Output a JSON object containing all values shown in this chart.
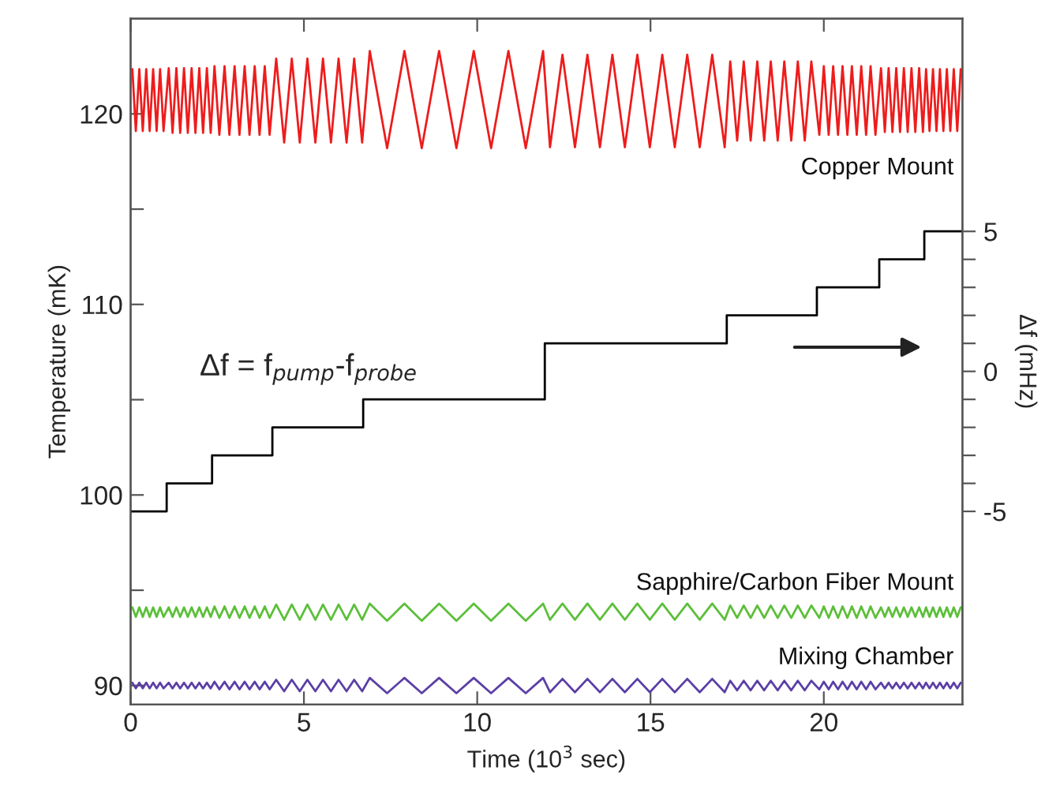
{
  "chart_data": {
    "type": "line",
    "xlabel": "Time (10$^{3}$ sec)",
    "ylabel": "Temperature (mK)",
    "y2label": "Δf (mHz)",
    "annotations": [
      "Δf = f$_{pump}$-f$_{probe}$"
    ],
    "xlim": [
      0,
      24
    ],
    "xticks": [
      0,
      5,
      10,
      15,
      20
    ],
    "ylim": [
      89,
      125
    ],
    "yticks": [
      90,
      {
        "value": 95,
        "label": null
      },
      100,
      {
        "value": 105,
        "label": null
      },
      110,
      {
        "value": 115,
        "label": null
      },
      120
    ],
    "y2lim": [
      -11.9,
      12.6
    ],
    "y2ticks": [
      -5,
      {
        "value": -4,
        "label": null
      },
      {
        "value": -3,
        "label": null
      },
      {
        "value": -2,
        "label": null
      },
      {
        "value": -1,
        "label": null
      },
      0,
      {
        "value": 1,
        "label": null
      },
      {
        "value": 2,
        "label": null
      },
      {
        "value": 3,
        "label": null
      },
      {
        "value": 4,
        "label": null
      },
      5
    ],
    "legend": false,
    "grid": false,
    "x": [
      0.05,
      0.15,
      0.25,
      0.35,
      0.45,
      0.55,
      0.65,
      0.75,
      0.85,
      0.95,
      1.1,
      1.21,
      1.32,
      1.43,
      1.54,
      1.65,
      1.76,
      1.87,
      1.98,
      2.09,
      2.2,
      2.31,
      2.42,
      2.56,
      2.71,
      2.85,
      3.0,
      3.14,
      3.29,
      3.43,
      3.58,
      3.72,
      3.87,
      4.01,
      4.2,
      4.43,
      4.65,
      4.88,
      5.1,
      5.33,
      5.55,
      5.78,
      6.0,
      6.23,
      6.45,
      6.68,
      6.9,
      7.4,
      7.9,
      8.4,
      8.9,
      9.4,
      9.9,
      10.4,
      10.9,
      11.4,
      11.9,
      12.1,
      12.46,
      12.82,
      13.18,
      13.54,
      13.9,
      14.26,
      14.62,
      14.98,
      15.34,
      15.7,
      16.06,
      16.42,
      16.78,
      17.14,
      17.3,
      17.5,
      17.69,
      17.89,
      18.08,
      18.28,
      18.47,
      18.67,
      18.86,
      19.06,
      19.25,
      19.45,
      19.64,
      19.87,
      20.0,
      20.14,
      20.27,
      20.41,
      20.54,
      20.68,
      20.81,
      20.95,
      21.08,
      21.22,
      21.35,
      21.49,
      21.65,
      21.76,
      21.87,
      21.98,
      22.09,
      22.2,
      22.31,
      22.42,
      22.53,
      22.64,
      22.75,
      22.86,
      22.95,
      23.05,
      23.15,
      23.25,
      23.35,
      23.45,
      23.55,
      23.65,
      23.75,
      23.85,
      23.95
    ],
    "series": [
      {
        "name": "Copper Mount",
        "color": "#ee1c1c",
        "values": [
          122.35,
          119.1,
          122.35,
          119.1,
          122.35,
          119.1,
          122.35,
          119.1,
          122.35,
          119.1,
          122.4,
          119.0,
          122.4,
          119.0,
          122.4,
          119.0,
          122.4,
          119.0,
          122.4,
          119.0,
          122.4,
          119.0,
          122.5,
          118.9,
          122.5,
          118.9,
          122.5,
          118.9,
          122.5,
          118.9,
          122.5,
          118.9,
          122.5,
          118.9,
          122.9,
          118.5,
          122.9,
          118.5,
          122.9,
          118.5,
          122.9,
          118.5,
          122.9,
          118.5,
          122.9,
          118.5,
          123.3,
          118.2,
          123.3,
          118.2,
          123.3,
          118.2,
          123.3,
          118.2,
          123.3,
          118.2,
          123.3,
          118.25,
          123.1,
          118.25,
          123.1,
          118.25,
          123.1,
          118.25,
          123.1,
          118.25,
          123.1,
          118.25,
          123.1,
          118.25,
          123.1,
          118.25,
          122.75,
          118.6,
          122.75,
          118.6,
          122.75,
          118.6,
          122.75,
          118.6,
          122.75,
          118.6,
          122.75,
          118.6,
          122.75,
          118.9,
          122.5,
          118.9,
          122.5,
          118.9,
          122.5,
          118.9,
          122.5,
          118.9,
          122.5,
          118.9,
          122.5,
          118.9,
          122.4,
          119.05,
          122.4,
          119.05,
          122.4,
          119.05,
          122.4,
          119.05,
          122.4,
          119.05,
          122.4,
          119.05,
          122.35,
          119.1,
          122.35,
          119.1,
          122.35,
          119.1,
          122.35,
          119.1,
          122.35,
          119.1,
          122.35
        ]
      },
      {
        "name": "Sapphire/Carbon Fiber Mount",
        "color": "#5cbf3a",
        "values": [
          94.1,
          93.6,
          94.1,
          93.6,
          94.1,
          93.6,
          94.1,
          93.6,
          94.1,
          93.6,
          94.1,
          93.6,
          94.1,
          93.6,
          94.1,
          93.6,
          94.1,
          93.6,
          94.1,
          93.6,
          94.1,
          93.6,
          94.15,
          93.55,
          94.15,
          93.55,
          94.15,
          93.55,
          94.15,
          93.55,
          94.15,
          93.55,
          94.15,
          93.55,
          94.25,
          93.45,
          94.25,
          93.45,
          94.25,
          93.45,
          94.25,
          93.45,
          94.25,
          93.45,
          94.25,
          93.45,
          94.3,
          93.4,
          94.3,
          93.4,
          94.3,
          93.4,
          94.3,
          93.4,
          94.3,
          93.4,
          94.3,
          93.45,
          94.3,
          93.45,
          94.3,
          93.45,
          94.3,
          93.45,
          94.3,
          93.45,
          94.3,
          93.45,
          94.3,
          93.45,
          94.3,
          93.45,
          94.2,
          93.55,
          94.2,
          93.55,
          94.2,
          93.55,
          94.2,
          93.55,
          94.2,
          93.55,
          94.2,
          93.55,
          94.2,
          93.55,
          94.15,
          93.55,
          94.15,
          93.55,
          94.15,
          93.55,
          94.15,
          93.55,
          94.15,
          93.55,
          94.15,
          93.55,
          94.1,
          93.6,
          94.1,
          93.6,
          94.1,
          93.6,
          94.1,
          93.6,
          94.1,
          93.6,
          94.1,
          93.6,
          94.1,
          93.6,
          94.1,
          93.6,
          94.1,
          93.6,
          94.1,
          93.6,
          94.1,
          93.6,
          94.1
        ]
      },
      {
        "name": "Mixing Chamber",
        "color": "#5b3fa6",
        "values": [
          90.15,
          89.85,
          90.15,
          89.85,
          90.15,
          89.85,
          90.15,
          89.85,
          90.15,
          89.85,
          90.15,
          89.85,
          90.15,
          89.85,
          90.15,
          89.85,
          90.15,
          89.85,
          90.15,
          89.85,
          90.15,
          89.85,
          90.2,
          89.8,
          90.2,
          89.8,
          90.2,
          89.8,
          90.2,
          89.8,
          90.2,
          89.8,
          90.2,
          89.8,
          90.3,
          89.7,
          90.3,
          89.7,
          90.3,
          89.7,
          90.3,
          89.7,
          90.3,
          89.7,
          90.3,
          89.7,
          90.4,
          89.6,
          90.4,
          89.6,
          90.4,
          89.6,
          90.4,
          89.6,
          90.4,
          89.6,
          90.4,
          89.65,
          90.35,
          89.65,
          90.35,
          89.65,
          90.35,
          89.65,
          90.35,
          89.65,
          90.35,
          89.65,
          90.35,
          89.65,
          90.35,
          89.65,
          90.25,
          89.75,
          90.25,
          89.75,
          90.25,
          89.75,
          90.25,
          89.75,
          90.25,
          89.75,
          90.25,
          89.75,
          90.25,
          89.8,
          90.2,
          89.8,
          90.2,
          89.8,
          90.2,
          89.8,
          90.2,
          89.8,
          90.2,
          89.8,
          90.2,
          89.8,
          90.15,
          89.85,
          90.15,
          89.85,
          90.15,
          89.85,
          90.15,
          89.85,
          90.15,
          89.85,
          90.15,
          89.85,
          90.15,
          89.85,
          90.15,
          89.85,
          90.15,
          89.85,
          90.15,
          89.85,
          90.15,
          89.85,
          90.15
        ]
      },
      {
        "type": "step",
        "axis": "y2",
        "color": "#000000",
        "x": [
          0,
          1.04,
          2.35,
          4.09,
          6.71,
          11.95,
          17.2,
          19.8,
          21.6,
          22.9,
          24
        ],
        "values": [
          -5,
          -4,
          -3,
          -2,
          -1,
          1,
          2,
          3,
          4,
          5,
          5
        ]
      }
    ]
  }
}
